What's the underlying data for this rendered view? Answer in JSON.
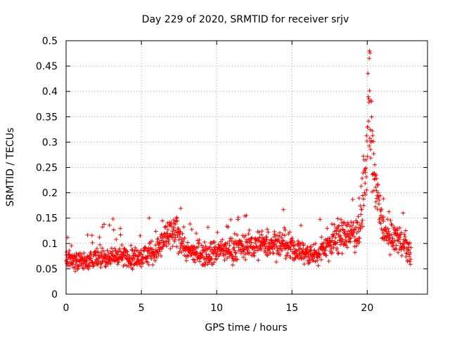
{
  "chart_data": {
    "type": "scatter",
    "title": "Day 229 of 2020, SRMTID for receiver srjv",
    "xlabel": "GPS time / hours",
    "ylabel": "SRMTID / TECUs",
    "xlim": [
      0,
      24
    ],
    "ylim": [
      0,
      0.5
    ],
    "x_ticks": [
      0,
      5,
      10,
      15,
      20
    ],
    "x_tick_labels": [
      "0",
      "5",
      "10",
      "15",
      "20"
    ],
    "y_ticks": [
      0,
      0.05,
      0.1,
      0.15,
      0.2,
      0.25,
      0.3,
      0.35,
      0.4,
      0.45,
      0.5
    ],
    "y_tick_labels": [
      "0",
      "0.05",
      "0.1",
      "0.15",
      "0.2",
      "0.25",
      "0.3",
      "0.35",
      "0.4",
      "0.45",
      "0.5"
    ],
    "grid": true,
    "legend": "none",
    "marker": "+",
    "color": "#ff0000",
    "series": [
      {
        "name": "SRMTID",
        "x_range": [
          0,
          22.9
        ],
        "n_points": 1400,
        "sample_x": [
          0.0,
          0.5,
          1.0,
          2.0,
          3.0,
          4.0,
          4.5,
          5.0,
          6.0,
          6.8,
          7.5,
          8.0,
          9.0,
          10.0,
          11.0,
          12.0,
          13.3,
          14.0,
          15.0,
          16.0,
          16.5,
          17.0,
          18.0,
          19.0,
          19.5,
          20.0,
          20.1,
          20.2,
          20.5,
          21.0,
          21.5,
          22.0,
          22.5,
          22.9
        ],
        "sample_y": [
          0.07,
          0.07,
          0.065,
          0.07,
          0.075,
          0.075,
          0.07,
          0.075,
          0.085,
          0.115,
          0.12,
          0.085,
          0.08,
          0.085,
          0.09,
          0.095,
          0.1,
          0.1,
          0.09,
          0.08,
          0.075,
          0.09,
          0.11,
          0.12,
          0.13,
          0.27,
          0.38,
          0.33,
          0.22,
          0.13,
          0.11,
          0.11,
          0.1,
          0.07
        ],
        "peak": {
          "x": 20.15,
          "y": 0.48
        }
      }
    ]
  }
}
